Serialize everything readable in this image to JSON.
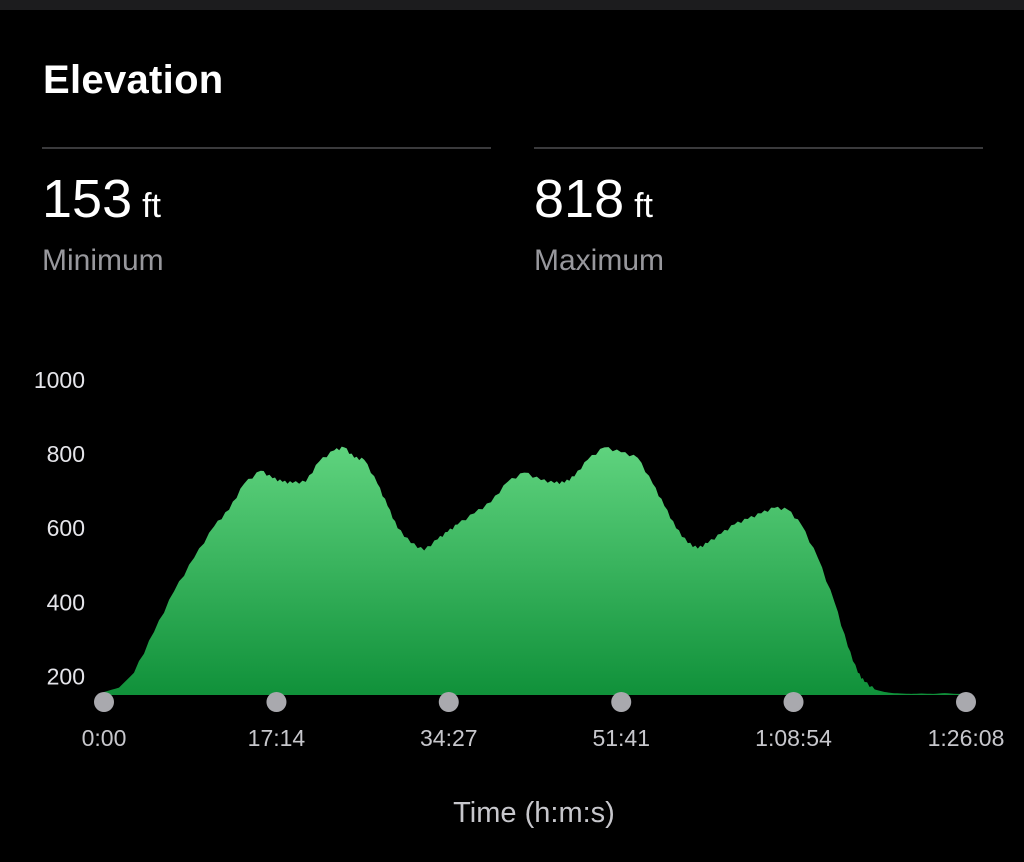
{
  "title": "Elevation",
  "stats": {
    "minimum": {
      "value": "153",
      "unit": "ft",
      "label": "Minimum"
    },
    "maximum": {
      "value": "818",
      "unit": "ft",
      "label": "Maximum"
    }
  },
  "colors": {
    "background": "#000000",
    "area_top": "#5fd37e",
    "area_bottom": "#10913a",
    "tick_dot": "#a9a9ae",
    "secondary_text": "#98989d"
  },
  "chart_data": {
    "type": "area",
    "xlabel": "Time (h:m:s)",
    "ylabel": "",
    "y_unit": "ft",
    "ylim": [
      150,
      1000
    ],
    "y_ticks": [
      "1000",
      "800",
      "600",
      "400",
      "200"
    ],
    "y_tick_values": [
      1000,
      800,
      600,
      400,
      200
    ],
    "x_tick_labels": [
      "0:00",
      "17:14",
      "34:27",
      "51:41",
      "1:08:54",
      "1:26:08"
    ],
    "x_tick_seconds": [
      0,
      1034,
      2067,
      3101,
      4134,
      5168
    ],
    "xlim_seconds": [
      0,
      5168
    ],
    "grid": false,
    "legend": "none",
    "series": [
      {
        "x_seconds": [
          0,
          90,
          180,
          300,
          420,
          540,
          660,
          750,
          840,
          940,
          1010,
          1070,
          1130,
          1210,
          1290,
          1380,
          1440,
          1500,
          1560,
          1640,
          1700,
          1760,
          1840,
          1920,
          2000,
          2060,
          2120,
          2220,
          2320,
          2420,
          2520,
          2620,
          2700,
          2760,
          2820,
          2900,
          3000,
          3100,
          3200,
          3290,
          3360,
          3430,
          3500,
          3560,
          3620,
          3700,
          3780,
          3860,
          3940,
          4020,
          4100,
          4180,
          4280,
          4380,
          4460,
          4520,
          4560,
          4620,
          4680,
          4730,
          4780,
          4840,
          4900,
          4970,
          5040,
          5110,
          5168
        ],
        "values": [
          158,
          170,
          210,
          320,
          430,
          520,
          605,
          650,
          720,
          755,
          735,
          725,
          722,
          725,
          780,
          810,
          818,
          790,
          785,
          720,
          660,
          600,
          560,
          540,
          570,
          590,
          610,
          640,
          670,
          725,
          750,
          730,
          722,
          723,
          740,
          785,
          818,
          805,
          790,
          720,
          660,
          600,
          560,
          545,
          560,
          585,
          610,
          625,
          640,
          655,
          650,
          610,
          520,
          400,
          280,
          210,
          185,
          165,
          158,
          155,
          154,
          153,
          154,
          153,
          155,
          153,
          153
        ]
      }
    ]
  }
}
